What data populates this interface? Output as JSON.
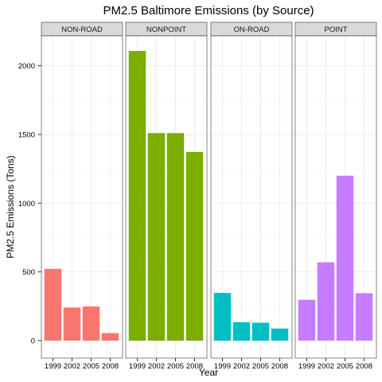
{
  "chart_data": {
    "type": "bar",
    "title": "PM2.5 Baltimore Emissions (by Source)",
    "xlabel": "Year",
    "ylabel": "PM2.5 Emissions (Tons)",
    "ylim": [
      0,
      2200
    ],
    "yticks": [
      0,
      500,
      1000,
      1500,
      2000
    ],
    "categories": [
      "1999",
      "2002",
      "2005",
      "2008"
    ],
    "grid": true,
    "legend": "none",
    "facets": [
      {
        "name": "NON-ROAD",
        "color": "#F8766D",
        "values": [
          522,
          241,
          248,
          55
        ]
      },
      {
        "name": "NONPOINT",
        "color": "#7CAE00",
        "values": [
          2108,
          1510,
          1510,
          1373
        ]
      },
      {
        "name": "ON-ROAD",
        "color": "#00BFC4",
        "values": [
          347,
          134,
          130,
          88
        ]
      },
      {
        "name": "POINT",
        "color": "#C77CFF",
        "values": [
          297,
          570,
          1200,
          345
        ]
      }
    ]
  }
}
